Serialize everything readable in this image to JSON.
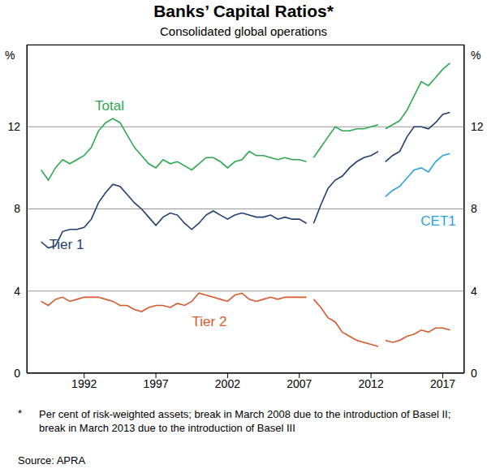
{
  "chart_data": {
    "type": "line",
    "title": "Banks’ Capital Ratios*",
    "subtitle": "Consolidated global operations",
    "ylabel": "%",
    "footnote_mark": "*",
    "footnote": "Per cent of risk-weighted assets; break in March 2008 due to the introduction of Basel II; break in March 2013 due to the introduction of Basel III",
    "source": "Source: APRA",
    "x": [
      1989.0,
      1989.5,
      1990.0,
      1990.5,
      1991.0,
      1991.5,
      1992.0,
      1992.5,
      1993.0,
      1993.5,
      1994.0,
      1994.5,
      1995.0,
      1995.5,
      1996.0,
      1996.5,
      1997.0,
      1997.5,
      1998.0,
      1998.5,
      1999.0,
      1999.5,
      2000.0,
      2000.5,
      2001.0,
      2001.5,
      2002.0,
      2002.5,
      2003.0,
      2003.5,
      2004.0,
      2004.5,
      2005.0,
      2005.5,
      2006.0,
      2006.5,
      2007.0,
      2007.5,
      2007.75,
      2008.0,
      2008.5,
      2009.0,
      2009.5,
      2010.0,
      2010.5,
      2011.0,
      2011.5,
      2012.0,
      2012.5,
      2012.75,
      2013.0,
      2013.5,
      2014.0,
      2014.5,
      2015.0,
      2015.5,
      2016.0,
      2016.5,
      2017.0,
      2017.5
    ],
    "series": [
      {
        "name": "Total",
        "color": "#2ea84f",
        "values": [
          9.9,
          9.4,
          10.0,
          10.4,
          10.2,
          10.4,
          10.6,
          11.0,
          11.8,
          12.2,
          12.4,
          12.2,
          11.6,
          11.0,
          10.6,
          10.2,
          10.0,
          10.4,
          10.2,
          10.3,
          10.1,
          9.9,
          10.2,
          10.5,
          10.5,
          10.3,
          10.0,
          10.3,
          10.4,
          10.8,
          10.6,
          10.6,
          10.5,
          10.4,
          10.5,
          10.4,
          10.4,
          10.3,
          null,
          10.5,
          11.0,
          11.5,
          12.0,
          11.8,
          11.8,
          11.9,
          11.9,
          12.0,
          12.1,
          null,
          11.9,
          12.1,
          12.3,
          12.8,
          13.5,
          14.2,
          14.0,
          14.4,
          14.8,
          15.1
        ]
      },
      {
        "name": "Tier 1",
        "color": "#1f3f73",
        "values": [
          6.4,
          6.1,
          6.2,
          6.9,
          7.0,
          7.0,
          7.1,
          7.5,
          8.3,
          8.8,
          9.2,
          9.1,
          8.7,
          8.3,
          8.0,
          7.6,
          7.2,
          7.6,
          7.8,
          7.7,
          7.3,
          7.0,
          7.3,
          7.7,
          7.9,
          7.7,
          7.5,
          7.7,
          7.8,
          7.7,
          7.6,
          7.6,
          7.7,
          7.5,
          7.6,
          7.5,
          7.5,
          7.3,
          null,
          7.3,
          8.2,
          9.0,
          9.4,
          9.6,
          10.0,
          10.3,
          10.5,
          10.6,
          10.8,
          null,
          10.3,
          10.6,
          10.8,
          11.5,
          12.0,
          12.0,
          11.9,
          12.2,
          12.6,
          12.7
        ]
      },
      {
        "name": "Tier 2",
        "color": "#d65a2e",
        "values": [
          3.5,
          3.3,
          3.6,
          3.7,
          3.5,
          3.6,
          3.7,
          3.7,
          3.7,
          3.6,
          3.5,
          3.3,
          3.3,
          3.1,
          3.0,
          3.2,
          3.3,
          3.3,
          3.2,
          3.4,
          3.3,
          3.5,
          3.9,
          3.8,
          3.7,
          3.6,
          3.5,
          3.8,
          3.9,
          3.6,
          3.5,
          3.6,
          3.7,
          3.6,
          3.7,
          3.7,
          3.7,
          3.7,
          null,
          3.6,
          3.2,
          2.7,
          2.5,
          2.0,
          1.8,
          1.6,
          1.5,
          1.4,
          1.3,
          null,
          1.6,
          1.5,
          1.6,
          1.8,
          1.9,
          2.1,
          2.0,
          2.2,
          2.2,
          2.1
        ]
      },
      {
        "name": "CET1",
        "color": "#2aa3dc",
        "values": [
          null,
          null,
          null,
          null,
          null,
          null,
          null,
          null,
          null,
          null,
          null,
          null,
          null,
          null,
          null,
          null,
          null,
          null,
          null,
          null,
          null,
          null,
          null,
          null,
          null,
          null,
          null,
          null,
          null,
          null,
          null,
          null,
          null,
          null,
          null,
          null,
          null,
          null,
          null,
          null,
          null,
          null,
          null,
          null,
          null,
          null,
          null,
          null,
          null,
          null,
          8.6,
          8.9,
          9.1,
          9.5,
          9.9,
          10.0,
          9.8,
          10.3,
          10.6,
          10.7
        ]
      }
    ],
    "xlim": [
      1988,
      2018.5
    ],
    "xticks": [
      1992,
      1997,
      2002,
      2007,
      2012,
      2017
    ],
    "ylim": [
      0,
      16
    ],
    "yticks": [
      0,
      4,
      8,
      12
    ],
    "grid": true
  }
}
